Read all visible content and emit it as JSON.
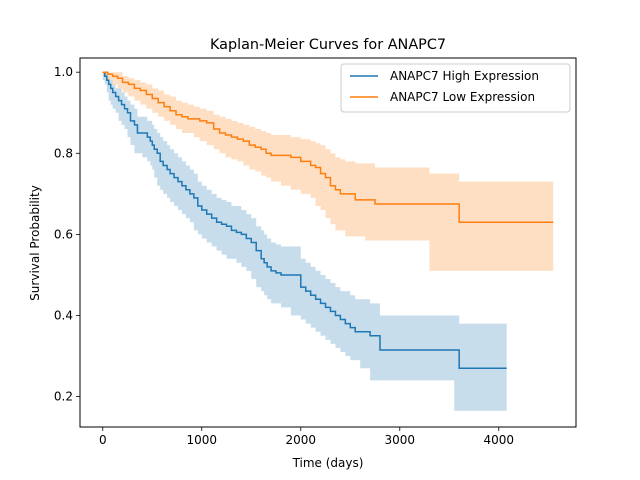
{
  "chart_data": {
    "type": "line",
    "title": "Kaplan-Meier Curves for ANAPC7",
    "xlabel": "Time (days)",
    "ylabel": "Survival Probability",
    "xlim": [
      -230,
      4780
    ],
    "ylim": [
      0.125,
      1.035
    ],
    "xticks": [
      0,
      1000,
      2000,
      3000,
      4000
    ],
    "xtick_labels": [
      "0",
      "1000",
      "2000",
      "3000",
      "4000"
    ],
    "yticks": [
      0.2,
      0.4,
      0.6,
      0.8,
      1.0
    ],
    "ytick_labels": [
      "0.2",
      "0.4",
      "0.6",
      "0.8",
      "1.0"
    ],
    "grid": false,
    "legend_position": "top-right",
    "series": [
      {
        "name": "ANAPC7 High Expression",
        "color": "#1f77b4",
        "x": [
          0,
          20,
          40,
          60,
          80,
          100,
          130,
          160,
          190,
          220,
          250,
          280,
          320,
          350,
          400,
          450,
          480,
          500,
          520,
          550,
          580,
          610,
          650,
          680,
          720,
          760,
          800,
          840,
          880,
          920,
          960,
          1000,
          1050,
          1100,
          1150,
          1200,
          1250,
          1300,
          1350,
          1400,
          1450,
          1500,
          1550,
          1600,
          1630,
          1660,
          1700,
          1750,
          1800,
          1900,
          2000,
          2050,
          2100,
          2150,
          2200,
          2250,
          2300,
          2350,
          2400,
          2450,
          2500,
          2550,
          2600,
          2700,
          2800,
          3000,
          3200,
          3400,
          3550,
          3600,
          4080
        ],
        "y": [
          1.0,
          0.99,
          0.98,
          0.97,
          0.96,
          0.95,
          0.94,
          0.93,
          0.92,
          0.91,
          0.9,
          0.88,
          0.87,
          0.85,
          0.85,
          0.84,
          0.83,
          0.82,
          0.81,
          0.8,
          0.78,
          0.77,
          0.76,
          0.75,
          0.74,
          0.73,
          0.72,
          0.71,
          0.7,
          0.69,
          0.67,
          0.66,
          0.65,
          0.64,
          0.63,
          0.625,
          0.62,
          0.61,
          0.605,
          0.6,
          0.59,
          0.58,
          0.56,
          0.54,
          0.53,
          0.52,
          0.51,
          0.505,
          0.5,
          0.5,
          0.47,
          0.46,
          0.45,
          0.44,
          0.43,
          0.42,
          0.41,
          0.4,
          0.39,
          0.38,
          0.37,
          0.36,
          0.36,
          0.35,
          0.315,
          0.315,
          0.315,
          0.315,
          0.315,
          0.27,
          0.27
        ],
        "ci_lower": [
          1.0,
          0.98,
          0.97,
          0.95,
          0.93,
          0.92,
          0.91,
          0.9,
          0.88,
          0.87,
          0.86,
          0.84,
          0.82,
          0.8,
          0.8,
          0.79,
          0.78,
          0.77,
          0.76,
          0.74,
          0.72,
          0.71,
          0.7,
          0.69,
          0.68,
          0.67,
          0.66,
          0.65,
          0.64,
          0.63,
          0.61,
          0.6,
          0.59,
          0.58,
          0.57,
          0.56,
          0.55,
          0.54,
          0.54,
          0.53,
          0.52,
          0.51,
          0.49,
          0.47,
          0.46,
          0.45,
          0.44,
          0.43,
          0.43,
          0.42,
          0.4,
          0.39,
          0.38,
          0.37,
          0.36,
          0.35,
          0.34,
          0.33,
          0.32,
          0.31,
          0.3,
          0.29,
          0.29,
          0.27,
          0.24,
          0.24,
          0.24,
          0.24,
          0.24,
          0.165,
          0.165
        ],
        "ci_upper": [
          1.0,
          1.0,
          0.99,
          0.98,
          0.98,
          0.97,
          0.96,
          0.96,
          0.95,
          0.94,
          0.93,
          0.92,
          0.91,
          0.89,
          0.89,
          0.88,
          0.88,
          0.87,
          0.86,
          0.85,
          0.84,
          0.83,
          0.82,
          0.81,
          0.8,
          0.79,
          0.78,
          0.77,
          0.76,
          0.75,
          0.73,
          0.72,
          0.71,
          0.7,
          0.69,
          0.685,
          0.68,
          0.67,
          0.67,
          0.66,
          0.65,
          0.64,
          0.62,
          0.61,
          0.6,
          0.59,
          0.58,
          0.575,
          0.57,
          0.57,
          0.54,
          0.53,
          0.52,
          0.51,
          0.5,
          0.49,
          0.48,
          0.47,
          0.46,
          0.46,
          0.45,
          0.44,
          0.44,
          0.43,
          0.4,
          0.4,
          0.4,
          0.4,
          0.4,
          0.38,
          0.38
        ]
      },
      {
        "name": "ANAPC7 Low Expression",
        "color": "#ff7f0e",
        "x": [
          0,
          50,
          100,
          150,
          200,
          260,
          320,
          380,
          440,
          500,
          560,
          620,
          680,
          740,
          800,
          860,
          920,
          980,
          1050,
          1120,
          1180,
          1240,
          1300,
          1360,
          1420,
          1480,
          1540,
          1600,
          1650,
          1700,
          1800,
          1900,
          2000,
          2100,
          2150,
          2200,
          2250,
          2300,
          2350,
          2400,
          2450,
          2550,
          2650,
          2750,
          3000,
          3300,
          3600,
          4550
        ],
        "y": [
          1.0,
          0.995,
          0.99,
          0.985,
          0.975,
          0.97,
          0.96,
          0.955,
          0.945,
          0.935,
          0.925,
          0.915,
          0.905,
          0.895,
          0.89,
          0.885,
          0.885,
          0.88,
          0.875,
          0.86,
          0.85,
          0.845,
          0.84,
          0.835,
          0.83,
          0.82,
          0.815,
          0.81,
          0.8,
          0.795,
          0.795,
          0.79,
          0.78,
          0.77,
          0.765,
          0.75,
          0.74,
          0.72,
          0.71,
          0.7,
          0.7,
          0.685,
          0.685,
          0.675,
          0.675,
          0.675,
          0.63,
          0.63
        ],
        "ci_lower": [
          1.0,
          0.99,
          0.98,
          0.97,
          0.96,
          0.95,
          0.94,
          0.93,
          0.92,
          0.91,
          0.9,
          0.89,
          0.88,
          0.87,
          0.86,
          0.85,
          0.85,
          0.84,
          0.83,
          0.82,
          0.81,
          0.8,
          0.79,
          0.785,
          0.78,
          0.77,
          0.76,
          0.755,
          0.745,
          0.74,
          0.73,
          0.72,
          0.71,
          0.7,
          0.69,
          0.67,
          0.66,
          0.64,
          0.625,
          0.61,
          0.61,
          0.595,
          0.595,
          0.585,
          0.585,
          0.585,
          0.51,
          0.51
        ],
        "ci_upper": [
          1.0,
          1.0,
          1.0,
          1.0,
          0.99,
          0.985,
          0.98,
          0.975,
          0.97,
          0.96,
          0.955,
          0.945,
          0.94,
          0.93,
          0.925,
          0.92,
          0.915,
          0.91,
          0.905,
          0.895,
          0.89,
          0.885,
          0.88,
          0.875,
          0.87,
          0.865,
          0.86,
          0.855,
          0.85,
          0.845,
          0.845,
          0.84,
          0.835,
          0.83,
          0.825,
          0.82,
          0.81,
          0.8,
          0.79,
          0.785,
          0.78,
          0.775,
          0.775,
          0.765,
          0.765,
          0.75,
          0.73,
          0.73
        ]
      }
    ]
  }
}
